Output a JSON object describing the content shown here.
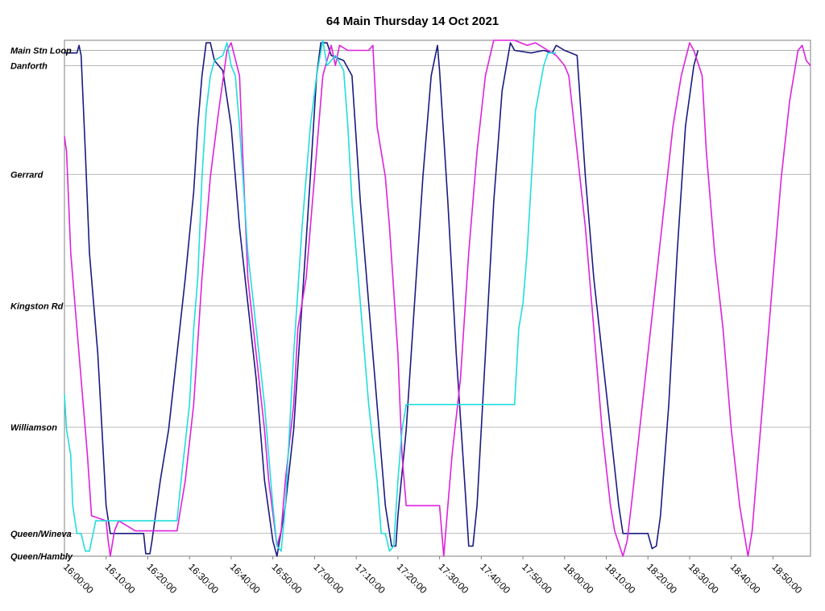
{
  "chart_data": {
    "type": "line",
    "title": "64 Main Thursday 14 Oct 2021",
    "x_ticks": [
      "16:00:00",
      "16:10:00",
      "16:20:00",
      "16:30:00",
      "16:40:00",
      "16:50:00",
      "17:00:00",
      "17:10:00",
      "17:20:00",
      "17:30:00",
      "17:40:00",
      "17:50:00",
      "18:00:00",
      "18:10:00",
      "18:20:00",
      "18:30:00",
      "18:40:00",
      "18:50:00"
    ],
    "xlim": [
      "16:00:00",
      "18:59:00"
    ],
    "stops": [
      {
        "name": "Main Stn Loop",
        "pos": 100
      },
      {
        "name": "Danforth",
        "pos": 97
      },
      {
        "name": "Gerrard",
        "pos": 75.5
      },
      {
        "name": "Kingston Rd",
        "pos": 49.5
      },
      {
        "name": "Williamson",
        "pos": 25.5
      },
      {
        "name": "Queen/Wineva",
        "pos": 4.5
      },
      {
        "name": "Queen/Hambly",
        "pos": 0
      }
    ],
    "ylim": [
      0,
      102
    ],
    "grid": "horizontal",
    "series": [
      {
        "color": "#1a1a80",
        "points": [
          [
            "16:00:00",
            99.5
          ],
          [
            "16:03:00",
            99.5
          ],
          [
            "16:03:30",
            101
          ],
          [
            "16:04:00",
            99
          ],
          [
            "16:05:00",
            80
          ],
          [
            "16:06:00",
            60
          ],
          [
            "16:07:00",
            50
          ],
          [
            "16:08:00",
            40
          ],
          [
            "16:09:00",
            25
          ],
          [
            "16:10:00",
            10
          ],
          [
            "16:11:00",
            4.5
          ],
          [
            "16:19:00",
            4.5
          ],
          [
            "16:19:30",
            0.5
          ],
          [
            "16:20:30",
            0.5
          ],
          [
            "16:21:00",
            3
          ],
          [
            "16:23:00",
            15
          ],
          [
            "16:25:00",
            25
          ],
          [
            "16:27:00",
            40
          ],
          [
            "16:29:00",
            55
          ],
          [
            "16:31:00",
            72
          ],
          [
            "16:32:00",
            85
          ],
          [
            "16:33:00",
            95
          ],
          [
            "16:34:00",
            101.5
          ],
          [
            "16:35:00",
            101.5
          ],
          [
            "16:36:00",
            98
          ],
          [
            "16:38:00",
            96
          ],
          [
            "16:40:00",
            85
          ],
          [
            "16:42:00",
            65
          ],
          [
            "16:44:00",
            50
          ],
          [
            "16:46:00",
            35
          ],
          [
            "16:48:00",
            15
          ],
          [
            "16:50:00",
            3
          ],
          [
            "16:51:00",
            0
          ],
          [
            "16:52:00",
            5
          ],
          [
            "16:53:00",
            10
          ],
          [
            "16:55:00",
            25
          ],
          [
            "16:57:00",
            50
          ],
          [
            "16:59:00",
            75
          ],
          [
            "17:00:30",
            95
          ],
          [
            "17:01:30",
            101.5
          ],
          [
            "17:03:00",
            101.5
          ],
          [
            "17:04:00",
            99
          ],
          [
            "17:07:00",
            98
          ],
          [
            "17:09:00",
            95
          ],
          [
            "17:11:00",
            70
          ],
          [
            "17:13:00",
            50
          ],
          [
            "17:15:00",
            30
          ],
          [
            "17:17:00",
            10
          ],
          [
            "17:18:30",
            2
          ],
          [
            "17:19:30",
            2
          ],
          [
            "17:20:00",
            8
          ],
          [
            "17:22:00",
            25
          ],
          [
            "17:24:00",
            50
          ],
          [
            "17:26:00",
            75
          ],
          [
            "17:28:00",
            95
          ],
          [
            "17:29:30",
            101
          ],
          [
            "17:30:00",
            96
          ],
          [
            "17:32:00",
            70
          ],
          [
            "17:34:00",
            40
          ],
          [
            "17:36:00",
            15
          ],
          [
            "17:37:00",
            2
          ],
          [
            "17:38:00",
            2
          ],
          [
            "17:39:00",
            10
          ],
          [
            "17:41:00",
            40
          ],
          [
            "17:43:00",
            70
          ],
          [
            "17:45:00",
            92
          ],
          [
            "17:47:00",
            101.5
          ],
          [
            "17:48:00",
            100
          ],
          [
            "17:52:00",
            99.5
          ],
          [
            "17:55:00",
            100
          ],
          [
            "17:57:00",
            99.5
          ],
          [
            "17:58:00",
            101
          ],
          [
            "18:00:00",
            100
          ],
          [
            "18:03:00",
            99
          ],
          [
            "18:05:00",
            75
          ],
          [
            "18:07:00",
            55
          ],
          [
            "18:09:00",
            40
          ],
          [
            "18:11:00",
            25
          ],
          [
            "18:13:00",
            10
          ],
          [
            "18:14:00",
            4.5
          ],
          [
            "18:20:00",
            4.5
          ],
          [
            "18:21:00",
            1.5
          ],
          [
            "18:22:00",
            2
          ],
          [
            "18:23:00",
            8
          ],
          [
            "18:25:00",
            30
          ],
          [
            "18:27:00",
            60
          ],
          [
            "18:29:00",
            85
          ],
          [
            "18:31:00",
            97
          ],
          [
            "18:32:00",
            100
          ]
        ]
      },
      {
        "color": "#dd22dd",
        "points": [
          [
            "16:00:00",
            83
          ],
          [
            "16:00:30",
            80
          ],
          [
            "16:01:30",
            60
          ],
          [
            "16:02:30",
            50
          ],
          [
            "16:04:00",
            35
          ],
          [
            "16:05:30",
            20
          ],
          [
            "16:06:30",
            8
          ],
          [
            "16:10:00",
            7
          ],
          [
            "16:10:30",
            3
          ],
          [
            "16:11:00",
            0
          ],
          [
            "16:12:00",
            5
          ],
          [
            "16:13:00",
            7
          ],
          [
            "16:17:00",
            5
          ],
          [
            "16:27:00",
            5
          ],
          [
            "16:29:00",
            15
          ],
          [
            "16:31:00",
            30
          ],
          [
            "16:33:00",
            55
          ],
          [
            "16:35:00",
            75
          ],
          [
            "16:37:00",
            88
          ],
          [
            "16:39:00",
            100
          ],
          [
            "16:40:00",
            101.5
          ],
          [
            "16:42:00",
            95
          ],
          [
            "16:43:00",
            75
          ],
          [
            "16:44:00",
            55
          ],
          [
            "16:46:00",
            40
          ],
          [
            "16:48:00",
            25
          ],
          [
            "16:49:00",
            15
          ],
          [
            "16:51:00",
            2
          ],
          [
            "16:52:00",
            5
          ],
          [
            "16:53:00",
            15
          ],
          [
            "16:55:00",
            30
          ],
          [
            "16:56:00",
            45
          ],
          [
            "16:58:00",
            55
          ],
          [
            "17:00:00",
            75
          ],
          [
            "17:02:00",
            95
          ],
          [
            "17:04:00",
            101
          ],
          [
            "17:05:00",
            97
          ],
          [
            "17:06:00",
            101
          ],
          [
            "17:08:00",
            100
          ],
          [
            "17:09:00",
            100
          ],
          [
            "17:13:00",
            100
          ],
          [
            "17:14:00",
            101
          ],
          [
            "17:15:00",
            85
          ],
          [
            "17:17:00",
            75
          ],
          [
            "17:18:00",
            65
          ],
          [
            "17:20:00",
            40
          ],
          [
            "17:21:00",
            20
          ],
          [
            "17:22:00",
            10
          ],
          [
            "17:23:00",
            10
          ],
          [
            "17:30:00",
            10
          ],
          [
            "17:31:00",
            0
          ],
          [
            "17:32:00",
            10
          ],
          [
            "17:33:00",
            20
          ],
          [
            "17:35:00",
            35
          ],
          [
            "17:37:00",
            60
          ],
          [
            "17:39:00",
            80
          ],
          [
            "17:41:00",
            95
          ],
          [
            "17:43:00",
            102
          ],
          [
            "17:48:00",
            102
          ],
          [
            "17:51:00",
            101
          ],
          [
            "17:53:00",
            101.5
          ],
          [
            "17:56:00",
            100
          ],
          [
            "17:58:00",
            99
          ],
          [
            "18:00:00",
            97
          ],
          [
            "18:01:00",
            95
          ],
          [
            "18:03:00",
            80
          ],
          [
            "18:05:00",
            65
          ],
          [
            "18:07:00",
            45
          ],
          [
            "18:09:00",
            25
          ],
          [
            "18:11:00",
            10
          ],
          [
            "18:12:00",
            5
          ],
          [
            "18:14:00",
            0
          ],
          [
            "18:15:00",
            3
          ],
          [
            "18:16:00",
            10
          ],
          [
            "18:18:00",
            25
          ],
          [
            "18:20:00",
            40
          ],
          [
            "18:22:00",
            55
          ],
          [
            "18:24:00",
            70
          ],
          [
            "18:26:00",
            85
          ],
          [
            "18:28:00",
            95
          ],
          [
            "18:30:00",
            101.5
          ],
          [
            "18:31:00",
            100
          ],
          [
            "18:33:00",
            95
          ],
          [
            "18:34:00",
            80
          ],
          [
            "18:36:00",
            60
          ],
          [
            "18:38:00",
            45
          ],
          [
            "18:40:00",
            25
          ],
          [
            "18:42:00",
            10
          ],
          [
            "18:43:00",
            5
          ],
          [
            "18:44:00",
            0
          ],
          [
            "18:45:00",
            5
          ],
          [
            "18:46:00",
            15
          ],
          [
            "18:48:00",
            35
          ],
          [
            "18:50:00",
            55
          ],
          [
            "18:52:00",
            75
          ],
          [
            "18:54:00",
            90
          ],
          [
            "18:56:00",
            100
          ],
          [
            "18:57:00",
            101
          ],
          [
            "18:58:00",
            98
          ],
          [
            "18:59:00",
            97
          ]
        ]
      },
      {
        "color": "#22dddd",
        "points": [
          [
            "16:00:00",
            32
          ],
          [
            "16:00:30",
            25
          ],
          [
            "16:01:30",
            20
          ],
          [
            "16:02:00",
            10
          ],
          [
            "16:03:00",
            4.5
          ],
          [
            "16:04:00",
            4.5
          ],
          [
            "16:05:00",
            1
          ],
          [
            "16:06:00",
            1
          ],
          [
            "16:07:00",
            5
          ],
          [
            "16:07:30",
            7
          ],
          [
            "16:27:00",
            7
          ],
          [
            "16:28:00",
            15
          ],
          [
            "16:30:00",
            30
          ],
          [
            "16:31:00",
            45
          ],
          [
            "16:32:00",
            55
          ],
          [
            "16:33:00",
            75
          ],
          [
            "16:34:00",
            88
          ],
          [
            "16:35:00",
            95
          ],
          [
            "16:36:00",
            98
          ],
          [
            "16:38:00",
            99
          ],
          [
            "16:39:00",
            101.5
          ],
          [
            "16:40:00",
            97
          ],
          [
            "16:41:00",
            95
          ],
          [
            "16:42:00",
            85
          ],
          [
            "16:44:00",
            60
          ],
          [
            "16:46:00",
            45
          ],
          [
            "16:48:00",
            30
          ],
          [
            "16:50:00",
            10
          ],
          [
            "16:51:00",
            2
          ],
          [
            "16:52:00",
            1
          ],
          [
            "16:53:00",
            10
          ],
          [
            "16:55:00",
            40
          ],
          [
            "16:57:00",
            65
          ],
          [
            "16:59:00",
            85
          ],
          [
            "17:00:30",
            95
          ],
          [
            "17:02:00",
            102
          ],
          [
            "17:03:00",
            97
          ],
          [
            "17:05:00",
            99
          ],
          [
            "17:07:00",
            96
          ],
          [
            "17:08:00",
            85
          ],
          [
            "17:09:00",
            70
          ],
          [
            "17:11:00",
            50
          ],
          [
            "17:13:00",
            30
          ],
          [
            "17:15:00",
            15
          ],
          [
            "17:16:00",
            4.5
          ],
          [
            "17:17:00",
            4.5
          ],
          [
            "17:18:00",
            1
          ],
          [
            "17:19:00",
            2
          ],
          [
            "17:20:00",
            15
          ],
          [
            "17:21:00",
            25
          ],
          [
            "17:22:00",
            30
          ],
          [
            "17:40:00",
            30
          ],
          [
            "17:48:00",
            30
          ],
          [
            "17:49:00",
            45
          ],
          [
            "17:50:00",
            50
          ],
          [
            "17:51:00",
            60
          ],
          [
            "17:53:00",
            88
          ],
          [
            "17:55:00",
            97
          ],
          [
            "17:56:00",
            99.5
          ],
          [
            "17:58:00",
            99.5
          ]
        ]
      }
    ]
  }
}
